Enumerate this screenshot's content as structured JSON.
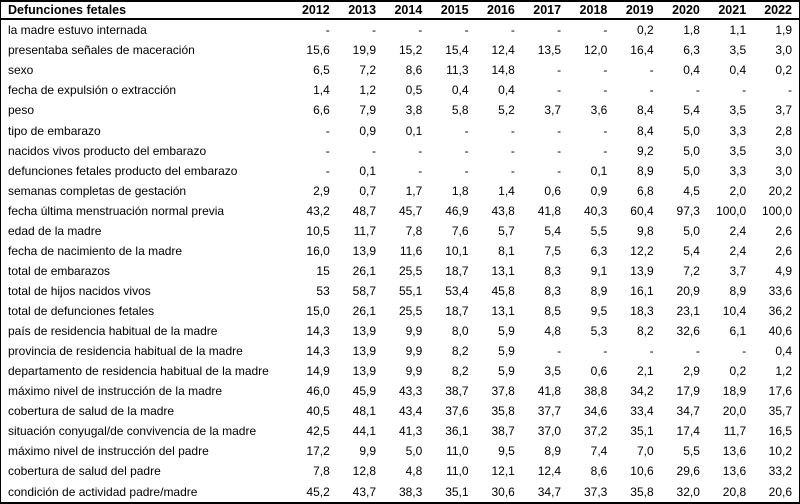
{
  "table": {
    "header_label": "Defunciones fetales",
    "years": [
      "2012",
      "2013",
      "2014",
      "2015",
      "2016",
      "2017",
      "2018",
      "2019",
      "2020",
      "2021",
      "2022"
    ],
    "rows": [
      {
        "label": "la madre estuvo internada",
        "values": [
          "-",
          "-",
          "-",
          "-",
          "-",
          "-",
          "-",
          "0,2",
          "1,8",
          "1,1",
          "1,9"
        ]
      },
      {
        "label": "presentaba señales de maceración",
        "values": [
          "15,6",
          "19,9",
          "15,2",
          "15,4",
          "12,4",
          "13,5",
          "12,0",
          "16,4",
          "6,3",
          "3,5",
          "3,0"
        ]
      },
      {
        "label": "sexo",
        "values": [
          "6,5",
          "7,2",
          "8,6",
          "11,3",
          "14,8",
          "-",
          "-",
          "-",
          "0,4",
          "0,4",
          "0,2"
        ]
      },
      {
        "label": "fecha de expulsión o extracción",
        "values": [
          "1,4",
          "1,2",
          "0,5",
          "0,4",
          "0,4",
          "-",
          "-",
          "-",
          "-",
          "-",
          "-"
        ]
      },
      {
        "label": "peso",
        "values": [
          "6,6",
          "7,9",
          "3,8",
          "5,8",
          "5,2",
          "3,7",
          "3,6",
          "8,4",
          "5,4",
          "3,5",
          "3,7"
        ]
      },
      {
        "label": "tipo de embarazo",
        "values": [
          "-",
          "0,9",
          "0,1",
          "-",
          "-",
          "-",
          "-",
          "8,4",
          "5,0",
          "3,3",
          "2,8"
        ]
      },
      {
        "label": "nacidos vivos producto del embarazo",
        "values": [
          "-",
          "-",
          "-",
          "-",
          "-",
          "-",
          "-",
          "9,2",
          "5,0",
          "3,5",
          "3,0"
        ]
      },
      {
        "label": "defunciones fetales producto del embarazo",
        "values": [
          "-",
          "0,1",
          "-",
          "-",
          "-",
          "-",
          "0,1",
          "8,9",
          "5,0",
          "3,3",
          "3,0"
        ]
      },
      {
        "label": "semanas completas de gestación",
        "values": [
          "2,9",
          "0,7",
          "1,7",
          "1,8",
          "1,4",
          "0,6",
          "0,9",
          "6,8",
          "4,5",
          "2,0",
          "20,2"
        ]
      },
      {
        "label": "fecha última menstruación normal previa",
        "values": [
          "43,2",
          "48,7",
          "45,7",
          "46,9",
          "43,8",
          "41,8",
          "40,3",
          "60,4",
          "97,3",
          "100,0",
          "100,0"
        ]
      },
      {
        "label": "edad de la madre",
        "values": [
          "10,5",
          "11,7",
          "7,8",
          "7,6",
          "5,7",
          "5,4",
          "5,5",
          "9,8",
          "5,0",
          "2,4",
          "2,6"
        ]
      },
      {
        "label": "fecha de nacimiento de la madre",
        "values": [
          "16,0",
          "13,9",
          "11,6",
          "10,1",
          "8,1",
          "7,5",
          "6,3",
          "12,2",
          "5,4",
          "2,4",
          "2,6"
        ]
      },
      {
        "label": "total de embarazos",
        "values": [
          "15",
          "26,1",
          "25,5",
          "18,7",
          "13,1",
          "8,3",
          "9,1",
          "13,9",
          "7,2",
          "3,7",
          "4,9"
        ]
      },
      {
        "label": "total de hijos nacidos vivos",
        "values": [
          "53",
          "58,7",
          "55,1",
          "53,4",
          "45,8",
          "8,3",
          "8,9",
          "16,1",
          "20,9",
          "8,9",
          "33,6"
        ]
      },
      {
        "label": "total de defunciones fetales",
        "values": [
          "15,0",
          "26,1",
          "25,5",
          "18,7",
          "13,1",
          "8,5",
          "9,5",
          "18,3",
          "23,1",
          "10,4",
          "36,2"
        ]
      },
      {
        "label": "país de residencia habitual de la madre",
        "values": [
          "14,3",
          "13,9",
          "9,9",
          "8,0",
          "5,9",
          "4,8",
          "5,3",
          "8,2",
          "32,6",
          "6,1",
          "40,6"
        ]
      },
      {
        "label": "provincia de residencia habitual de la madre",
        "values": [
          "14,3",
          "13,9",
          "9,9",
          "8,2",
          "5,9",
          "-",
          "-",
          "-",
          "-",
          "-",
          "0,4"
        ]
      },
      {
        "label": "departamento de residencia habitual de la madre",
        "values": [
          "14,9",
          "13,9",
          "9,9",
          "8,2",
          "5,9",
          "3,5",
          "0,6",
          "2,1",
          "2,9",
          "0,2",
          "1,2"
        ]
      },
      {
        "label": "máximo nivel de instrucción de la madre",
        "values": [
          "46,0",
          "45,9",
          "43,3",
          "38,7",
          "37,8",
          "41,8",
          "38,8",
          "34,2",
          "17,9",
          "18,9",
          "17,6"
        ]
      },
      {
        "label": "cobertura de salud de la madre",
        "values": [
          "40,5",
          "48,1",
          "43,4",
          "37,6",
          "35,8",
          "37,7",
          "34,6",
          "33,4",
          "34,7",
          "20,0",
          "35,7"
        ]
      },
      {
        "label": "situación conyugal/de convivencia de la madre",
        "values": [
          "42,5",
          "44,1",
          "41,3",
          "36,1",
          "38,7",
          "37,0",
          "37,2",
          "35,1",
          "17,4",
          "11,7",
          "16,5"
        ]
      },
      {
        "label": "máximo nivel de instrucción del padre",
        "values": [
          "17,2",
          "9,9",
          "5,0",
          "11,0",
          "9,5",
          "8,9",
          "7,4",
          "7,0",
          "5,5",
          "13,6",
          "10,2"
        ]
      },
      {
        "label": "cobertura de salud del padre",
        "values": [
          "7,8",
          "12,8",
          "4,8",
          "11,0",
          "12,1",
          "12,4",
          "8,6",
          "10,6",
          "29,6",
          "13,6",
          "33,2"
        ]
      },
      {
        "label": "condición de actividad padre/madre",
        "values": [
          "45,2",
          "43,7",
          "38,3",
          "35,1",
          "30,6",
          "34,7",
          "37,3",
          "35,8",
          "32,0",
          "20,8",
          "20,6"
        ]
      }
    ]
  }
}
